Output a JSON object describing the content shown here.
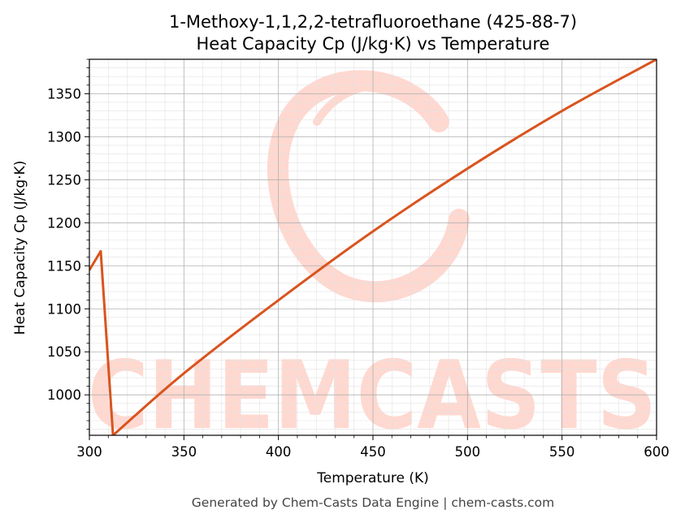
{
  "footer": "Generated by Chem-Casts Data Engine | chem-casts.com",
  "watermark": {
    "text": "CHEMCASTS",
    "color": "#ffd8d0"
  },
  "colors": {
    "line": "#d9541e",
    "grid_major": "#b0b0b0",
    "grid_minor": "#e2e2e2"
  },
  "chart_data": {
    "type": "line",
    "title": "1-Methoxy-1,1,2,2-tetrafluoroethane (425-88-7)",
    "subtitle": "Heat Capacity Cp (J/kg·K) vs Temperature",
    "xlabel": "Temperature (K)",
    "ylabel": "Heat Capacity Cp (J/kg·K)",
    "xlim": [
      300,
      600
    ],
    "ylim": [
      953,
      1390
    ],
    "xticks": [
      300,
      350,
      400,
      450,
      500,
      550,
      600
    ],
    "yticks": [
      1000,
      1050,
      1100,
      1150,
      1200,
      1250,
      1300,
      1350
    ],
    "grid": true,
    "series": [
      {
        "x": [
          300,
          306,
          312.5,
          350,
          400,
          450,
          500,
          550,
          600
        ],
        "y": [
          1145,
          1167,
          953,
          1025,
          1110,
          1190,
          1263,
          1330,
          1390
        ]
      }
    ]
  }
}
